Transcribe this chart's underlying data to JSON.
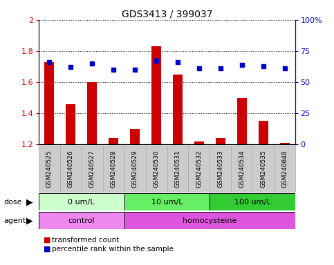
{
  "title": "GDS3413 / 399037",
  "samples": [
    "GSM240525",
    "GSM240526",
    "GSM240527",
    "GSM240528",
    "GSM240529",
    "GSM240530",
    "GSM240531",
    "GSM240532",
    "GSM240533",
    "GSM240534",
    "GSM240535",
    "GSM240848"
  ],
  "red_values": [
    1.73,
    1.46,
    1.6,
    1.24,
    1.3,
    1.83,
    1.65,
    1.22,
    1.24,
    1.5,
    1.35,
    1.21
  ],
  "blue_values": [
    66,
    62,
    65,
    60,
    60,
    67,
    66,
    61,
    61,
    64,
    63,
    61
  ],
  "ylim_left": [
    1.2,
    2.0
  ],
  "ylim_right": [
    0,
    100
  ],
  "yticks_left": [
    1.2,
    1.4,
    1.6,
    1.8,
    2.0
  ],
  "ytick_labels_left": [
    "1.2",
    "1.4",
    "1.6",
    "1.8",
    "2"
  ],
  "yticks_right": [
    0,
    25,
    50,
    75,
    100
  ],
  "ytick_labels_right": [
    "0",
    "25",
    "50",
    "75",
    "100%"
  ],
  "dose_groups": [
    {
      "label": "0 um/L",
      "start": 0,
      "end": 4,
      "color": "#ccffcc"
    },
    {
      "label": "10 um/L",
      "start": 4,
      "end": 8,
      "color": "#66ee66"
    },
    {
      "label": "100 um/L",
      "start": 8,
      "end": 12,
      "color": "#33cc33"
    }
  ],
  "agent_groups": [
    {
      "label": "control",
      "start": 0,
      "end": 4,
      "color": "#ee88ee"
    },
    {
      "label": "homocysteine",
      "start": 4,
      "end": 12,
      "color": "#dd55dd"
    }
  ],
  "dose_label": "dose",
  "agent_label": "agent",
  "legend_red": "transformed count",
  "legend_blue": "percentile rank within the sample",
  "bar_color": "#cc0000",
  "dot_color": "#0000cc",
  "base_value": 1.2,
  "left_axis_color": "#cc0000",
  "right_axis_color": "#0000cc",
  "xtick_bg": "#cccccc",
  "xtick_edge": "#aaaaaa"
}
